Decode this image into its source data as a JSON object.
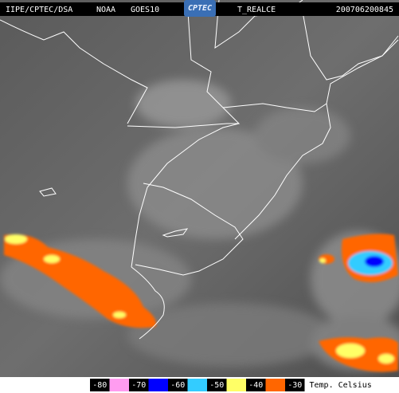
{
  "header": {
    "agency": "IIPE/CPTEC/DSA",
    "source": "NOAA",
    "satellite": "GOES10",
    "logo": "CPTEC",
    "product": "T_REALCE",
    "timestamp": "200706200845"
  },
  "legend": {
    "items": [
      {
        "label": "-80",
        "color": "#ff9cf0"
      },
      {
        "label": "-70",
        "color": "#0000ff"
      },
      {
        "label": "-60",
        "color": "#33ccff"
      },
      {
        "label": "-50",
        "color": "#ffff66"
      },
      {
        "label": "-40",
        "color": "#ff6600"
      },
      {
        "label": "-30",
        "color": null
      }
    ],
    "unit": "Temp. Celsius"
  }
}
